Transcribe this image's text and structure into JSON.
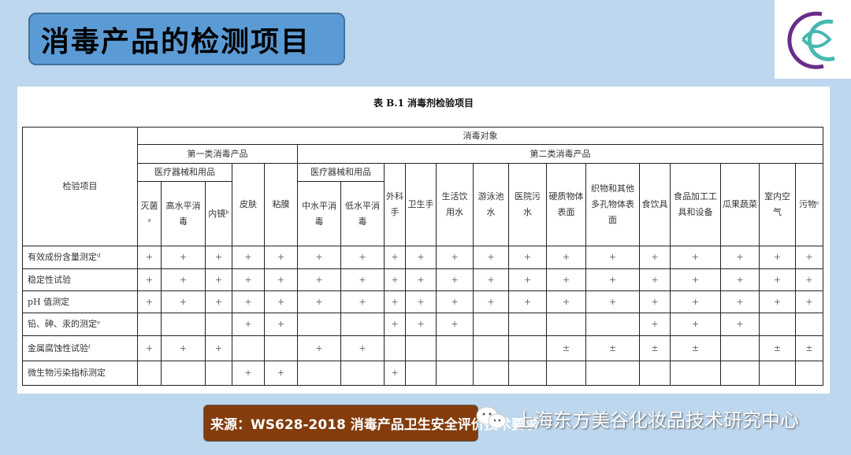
{
  "slide": {
    "title": "消毒产品的检测项目",
    "logo_icon": "company-logo",
    "source": "来源：WS628-2018 消毒产品卫生安全评价技术要求",
    "watermark": "上海东方美谷化妆品技术研究中心",
    "watermark_icon": "wechat-icon"
  },
  "table": {
    "title": "表 B.1 消毒剂检验项目",
    "corner": "检验项目",
    "top": "消毒对象",
    "group1": "第一类消毒产品",
    "group2": "第二类消毒产品",
    "sub_medical1": "医疗器械和用品",
    "sub_medical2": "医疗器械和用品",
    "columns": [
      "灭菌ᵃ",
      "高水平消毒",
      "内镜ᵇ",
      "皮肤",
      "粘膜",
      "中水平消毒",
      "低水平消毒",
      "外科手",
      "卫生手",
      "生活饮用水",
      "游泳池水",
      "医院污水",
      "硬质物体表面",
      "织物和其他多孔物体表面",
      "食饮具",
      "食品加工工具和设备",
      "瓜果蔬菜",
      "室内空气",
      "污物ᶜ"
    ],
    "rows": [
      {
        "label": "有效成份含量测定ᵈ",
        "cells": [
          "+",
          "+",
          "+",
          "+",
          "+",
          "+",
          "+",
          "+",
          "+",
          "+",
          "+",
          "+",
          "+",
          "+",
          "+",
          "+",
          "+",
          "+",
          "+"
        ]
      },
      {
        "label": "稳定性试验",
        "cells": [
          "+",
          "+",
          "+",
          "+",
          "+",
          "+",
          "+",
          "+",
          "+",
          "+",
          "+",
          "+",
          "+",
          "+",
          "+",
          "+",
          "+",
          "+",
          "+"
        ]
      },
      {
        "label": "pH 值测定",
        "cells": [
          "+",
          "+",
          "+",
          "+",
          "+",
          "+",
          "+",
          "+",
          "+",
          "+",
          "+",
          "+",
          "+",
          "+",
          "+",
          "+",
          "+",
          "+",
          "+"
        ]
      },
      {
        "label": "铅、砷、汞的测定ᵉ",
        "cells": [
          "",
          "",
          "",
          "+",
          "+",
          "",
          "",
          "+",
          "+",
          "+",
          "",
          "",
          "",
          "",
          "+",
          "+",
          "+",
          "",
          ""
        ]
      },
      {
        "label": "金属腐蚀性试验ᶠ",
        "cells": [
          "+",
          "+",
          "+",
          "",
          "",
          "+",
          "+",
          "",
          "",
          "",
          "",
          "",
          "±",
          "±",
          "±",
          "±",
          "",
          "±",
          "±"
        ]
      },
      {
        "label": "微生物污染指标测定",
        "cells": [
          "",
          "",
          "",
          "+",
          "+",
          "",
          "",
          "+",
          "",
          "",
          "",
          "",
          "",
          "",
          "",
          "",
          "",
          "",
          ""
        ]
      }
    ]
  }
}
